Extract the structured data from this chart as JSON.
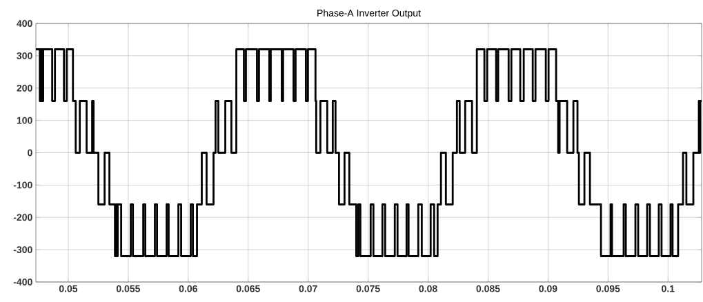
{
  "chart_data": {
    "type": "step",
    "title": "Phase-A Inverter Output",
    "xlim": [
      0.0473,
      0.1028
    ],
    "ylim": [
      -400,
      400
    ],
    "xticks": [
      0.05,
      0.055,
      0.06,
      0.065,
      0.07,
      0.075,
      0.08,
      0.085,
      0.09,
      0.095,
      0.1
    ],
    "yticks": [
      -400,
      -300,
      -200,
      -100,
      0,
      100,
      200,
      300,
      400
    ],
    "grid": true,
    "series": [
      {
        "color": "#000000",
        "x": [
          0.0473,
          0.04763,
          0.04768,
          0.04774,
          0.0478,
          0.04786,
          0.04791,
          0.04866,
          0.04889,
          0.04964,
          0.04987,
          0.05039,
          0.05062,
          0.05096,
          0.05153,
          0.05199,
          0.05211,
          0.05251,
          0.05303,
          0.05343,
          0.05389,
          0.05401,
          0.05406,
          0.05412,
          0.05441,
          0.05521,
          0.05539,
          0.05625,
          0.05642,
          0.05722,
          0.0574,
          0.0582,
          0.05837,
          0.05918,
          0.05941,
          0.06021,
          0.06039,
          0.06073,
          0.06113,
          0.06153,
          0.06211,
          0.06228,
          0.06251,
          0.06309,
          0.0636,
          0.06401,
          0.06464,
          0.06481,
          0.06573,
          0.0659,
          0.06676,
          0.06688,
          0.0678,
          0.06791,
          0.06878,
          0.06895,
          0.06981,
          0.06998,
          0.07061,
          0.07067,
          0.07102,
          0.07159,
          0.07205,
          0.07228,
          0.07257,
          0.07303,
          0.07343,
          0.07401,
          0.07418,
          0.07435,
          0.07521,
          0.07544,
          0.07619,
          0.07642,
          0.07722,
          0.07745,
          0.0782,
          0.07837,
          0.07918,
          0.07947,
          0.08021,
          0.0805,
          0.08079,
          0.08107,
          0.08148,
          0.08205,
          0.0824,
          0.08263,
          0.08309,
          0.08366,
          0.08406,
          0.08469,
          0.08492,
          0.08567,
          0.08584,
          0.08671,
          0.08694,
          0.08768,
          0.08797,
          0.08872,
          0.08895,
          0.08981,
          0.09004,
          0.09067,
          0.09084,
          0.09096,
          0.09159,
          0.09211,
          0.09245,
          0.09257,
          0.09303,
          0.09349,
          0.09441,
          0.09521,
          0.09533,
          0.0963,
          0.09648,
          0.09728,
          0.09751,
          0.09826,
          0.09849,
          0.09923,
          0.09946,
          0.10021,
          0.10038,
          0.10084,
          0.10125,
          0.10153,
          0.10211,
          0.10257,
          0.10262,
          0.10268,
          0.1028
        ],
        "values": [
          320,
          160,
          320,
          160,
          320,
          160,
          320,
          160,
          320,
          160,
          320,
          160,
          0,
          160,
          0,
          160,
          0,
          -160,
          0,
          -160,
          -320,
          -160,
          -320,
          -160,
          -320,
          -160,
          -320,
          -160,
          -320,
          -160,
          -320,
          -160,
          -320,
          -160,
          -320,
          -160,
          -320,
          -160,
          0,
          -160,
          0,
          160,
          0,
          160,
          0,
          320,
          160,
          320,
          160,
          320,
          160,
          320,
          160,
          320,
          160,
          320,
          160,
          320,
          160,
          0,
          160,
          0,
          160,
          0,
          -160,
          0,
          -160,
          -320,
          -160,
          -320,
          -160,
          -320,
          -160,
          -320,
          -160,
          -320,
          -160,
          -320,
          -160,
          -320,
          -160,
          -320,
          -160,
          0,
          -160,
          0,
          160,
          0,
          160,
          0,
          320,
          160,
          320,
          160,
          320,
          160,
          320,
          160,
          320,
          160,
          320,
          160,
          320,
          160,
          0,
          160,
          0,
          160,
          0,
          -160,
          0,
          -160,
          -320,
          -160,
          -320,
          -160,
          -320,
          -160,
          -320,
          -160,
          -320,
          -160,
          -320,
          -160,
          -320,
          -160,
          0,
          -160,
          0,
          160,
          0,
          160,
          160
        ]
      }
    ]
  }
}
